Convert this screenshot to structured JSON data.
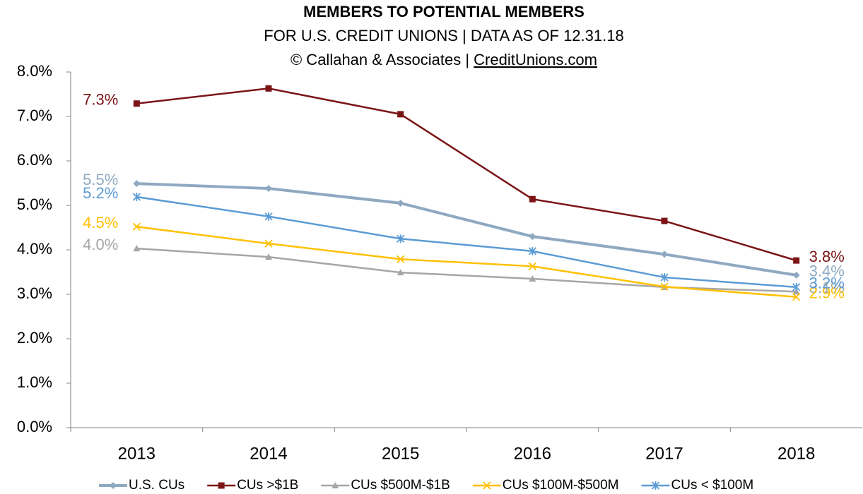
{
  "chart_data": {
    "type": "line",
    "title": "MEMBERS TO POTENTIAL MEMBERS",
    "subtitle": "FOR U.S. CREDIT UNIONS | DATA AS OF 12.31.18",
    "source": "© Callahan & Associates | ",
    "source_link": "CreditUnions.com",
    "categories": [
      "2013",
      "2014",
      "2015",
      "2016",
      "2017",
      "2018"
    ],
    "ylim": [
      0,
      8
    ],
    "yticks": [
      {
        "value": 0,
        "label": "0.0%"
      },
      {
        "value": 1,
        "label": "1.0%"
      },
      {
        "value": 2,
        "label": "2.0%"
      },
      {
        "value": 3,
        "label": "3.0%"
      },
      {
        "value": 4,
        "label": "4.0%"
      },
      {
        "value": 5,
        "label": "5.0%"
      },
      {
        "value": 6,
        "label": "6.0%"
      },
      {
        "value": 7,
        "label": "7.0%"
      },
      {
        "value": 8,
        "label": "8.0%"
      }
    ],
    "legend": "bottom",
    "series": [
      {
        "name": "U.S. CUs",
        "color": "#8EA9C1",
        "marker": "diamond",
        "values": [
          5.49,
          5.38,
          5.05,
          4.3,
          3.9,
          3.43
        ],
        "value_labels": [
          "5.5%",
          null,
          null,
          null,
          null,
          "3.4%"
        ]
      },
      {
        "name": "CUs >$1B",
        "color": "#7B1416",
        "marker": "square",
        "values": [
          7.29,
          7.63,
          7.05,
          5.14,
          4.65,
          3.76
        ],
        "value_labels": [
          "7.3%",
          null,
          null,
          null,
          null,
          "3.8%"
        ]
      },
      {
        "name": "CUs $500M-$1B",
        "color": "#A6A6A6",
        "marker": "triangle",
        "values": [
          4.03,
          3.84,
          3.49,
          3.35,
          3.16,
          3.06
        ],
        "value_labels": [
          "4.0%",
          null,
          null,
          null,
          null,
          "3.1%"
        ]
      },
      {
        "name": "CUs $100M-$500M",
        "color": "#FFC000",
        "marker": "x",
        "values": [
          4.52,
          4.14,
          3.79,
          3.63,
          3.17,
          2.94
        ],
        "value_labels": [
          "4.5%",
          null,
          null,
          null,
          null,
          "2.9%"
        ]
      },
      {
        "name": "CUs < $100M",
        "color": "#5B9BD5",
        "marker": "star",
        "values": [
          5.19,
          4.75,
          4.25,
          3.97,
          3.38,
          3.16
        ],
        "value_labels": [
          "5.2%",
          null,
          null,
          null,
          null,
          "3.2%"
        ]
      }
    ]
  }
}
